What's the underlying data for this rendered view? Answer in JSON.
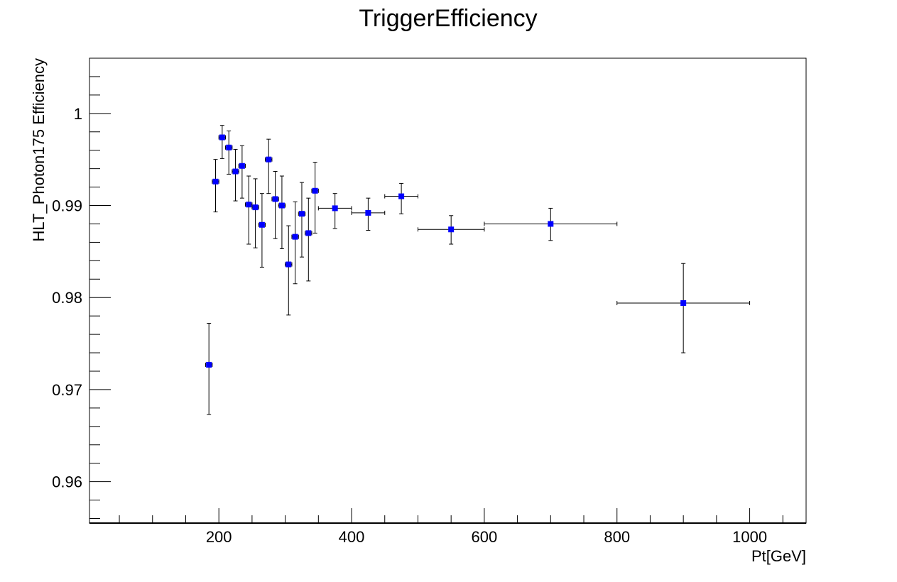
{
  "chart_data": {
    "type": "scatter",
    "title": "TriggerEfficiency",
    "xlabel": "Pt[GeV]",
    "ylabel": "HLT_Photon175 Efficiency",
    "xlim": [
      5,
      1085
    ],
    "ylim": [
      0.9555,
      1.006
    ],
    "x_ticks": [
      200,
      400,
      600,
      800,
      1000
    ],
    "x_tick_labels": [
      "200",
      "400",
      "600",
      "800",
      "1000"
    ],
    "y_ticks": [
      0.96,
      0.97,
      0.98,
      0.99,
      1.0
    ],
    "y_tick_labels": [
      "0.96",
      "0.97",
      "0.98",
      "0.99",
      "1"
    ],
    "grid": false,
    "legend": "none",
    "marker_color": "#0000ff",
    "points": [
      {
        "x": 185,
        "y": 0.9727,
        "xerr": 5,
        "yerr_low": 0.0054,
        "yerr_high": 0.0045
      },
      {
        "x": 195,
        "y": 0.9926,
        "xerr": 5,
        "yerr_low": 0.0033,
        "yerr_high": 0.0024
      },
      {
        "x": 205,
        "y": 0.9974,
        "xerr": 5,
        "yerr_low": 0.0023,
        "yerr_high": 0.0013
      },
      {
        "x": 215,
        "y": 0.9963,
        "xerr": 5,
        "yerr_low": 0.0029,
        "yerr_high": 0.0018
      },
      {
        "x": 225,
        "y": 0.9937,
        "xerr": 5,
        "yerr_low": 0.0032,
        "yerr_high": 0.0024
      },
      {
        "x": 235,
        "y": 0.9943,
        "xerr": 5,
        "yerr_low": 0.0035,
        "yerr_high": 0.0022
      },
      {
        "x": 245,
        "y": 0.9901,
        "xerr": 5,
        "yerr_low": 0.0043,
        "yerr_high": 0.0031
      },
      {
        "x": 255,
        "y": 0.9898,
        "xerr": 5,
        "yerr_low": 0.0044,
        "yerr_high": 0.0031
      },
      {
        "x": 265,
        "y": 0.9879,
        "xerr": 5,
        "yerr_low": 0.0046,
        "yerr_high": 0.0034
      },
      {
        "x": 275,
        "y": 0.995,
        "xerr": 5,
        "yerr_low": 0.0037,
        "yerr_high": 0.0022
      },
      {
        "x": 285,
        "y": 0.9907,
        "xerr": 5,
        "yerr_low": 0.0043,
        "yerr_high": 0.003
      },
      {
        "x": 295,
        "y": 0.99,
        "xerr": 5,
        "yerr_low": 0.0047,
        "yerr_high": 0.0032
      },
      {
        "x": 305,
        "y": 0.9836,
        "xerr": 5,
        "yerr_low": 0.0055,
        "yerr_high": 0.0042
      },
      {
        "x": 315,
        "y": 0.9866,
        "xerr": 5,
        "yerr_low": 0.0051,
        "yerr_high": 0.0038
      },
      {
        "x": 325,
        "y": 0.9891,
        "xerr": 5,
        "yerr_low": 0.0047,
        "yerr_high": 0.0034
      },
      {
        "x": 335,
        "y": 0.987,
        "xerr": 5,
        "yerr_low": 0.0052,
        "yerr_high": 0.0038
      },
      {
        "x": 345,
        "y": 0.9916,
        "xerr": 5,
        "yerr_low": 0.0046,
        "yerr_high": 0.0031
      },
      {
        "x": 375,
        "y": 0.9897,
        "xerr": 25,
        "yerr_low": 0.0022,
        "yerr_high": 0.0016
      },
      {
        "x": 425,
        "y": 0.9892,
        "xerr": 25,
        "yerr_low": 0.0019,
        "yerr_high": 0.0016
      },
      {
        "x": 475,
        "y": 0.991,
        "xerr": 25,
        "yerr_low": 0.0019,
        "yerr_high": 0.0014
      },
      {
        "x": 550,
        "y": 0.9874,
        "xerr": 50,
        "yerr_low": 0.0016,
        "yerr_high": 0.0015
      },
      {
        "x": 700,
        "y": 0.988,
        "xerr": 100,
        "yerr_low": 0.0018,
        "yerr_high": 0.0017
      },
      {
        "x": 900,
        "y": 0.9794,
        "xerr": 100,
        "yerr_low": 0.0054,
        "yerr_high": 0.0043
      }
    ]
  }
}
